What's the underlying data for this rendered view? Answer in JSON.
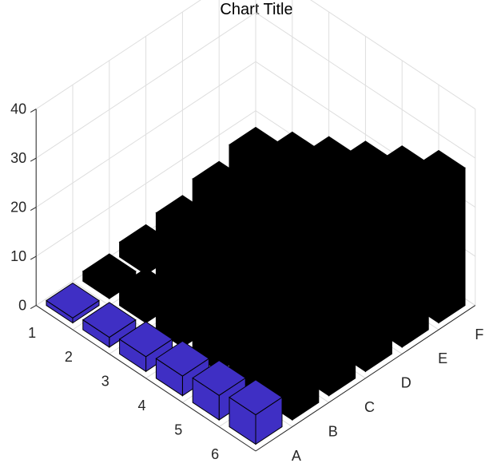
{
  "chart_data": {
    "type": "bar3",
    "title": "Chart Title",
    "xlabel": "",
    "ylabel": "",
    "zlabel": "",
    "row_labels": [
      "1",
      "2",
      "3",
      "4",
      "5",
      "6"
    ],
    "column_labels": [
      "A",
      "B",
      "C",
      "D",
      "E",
      "F"
    ],
    "z_ticks": [
      "0",
      "10",
      "20",
      "30",
      "40"
    ],
    "zlim": [
      0,
      40
    ],
    "grid": true,
    "colors": {
      "first_column": "#3f2fc4",
      "other_columns": "#000000",
      "grid": "#dedede",
      "axis": "#262626"
    },
    "values": [
      [
        1,
        2,
        3,
        4,
        6,
        8
      ],
      [
        2,
        4,
        6,
        8,
        10,
        12
      ],
      [
        3,
        6,
        9,
        12,
        14,
        16
      ],
      [
        4,
        8,
        12,
        16,
        18,
        20
      ],
      [
        5,
        10,
        15,
        20,
        22,
        24
      ],
      [
        6,
        12,
        18,
        24,
        26,
        28
      ]
    ]
  }
}
